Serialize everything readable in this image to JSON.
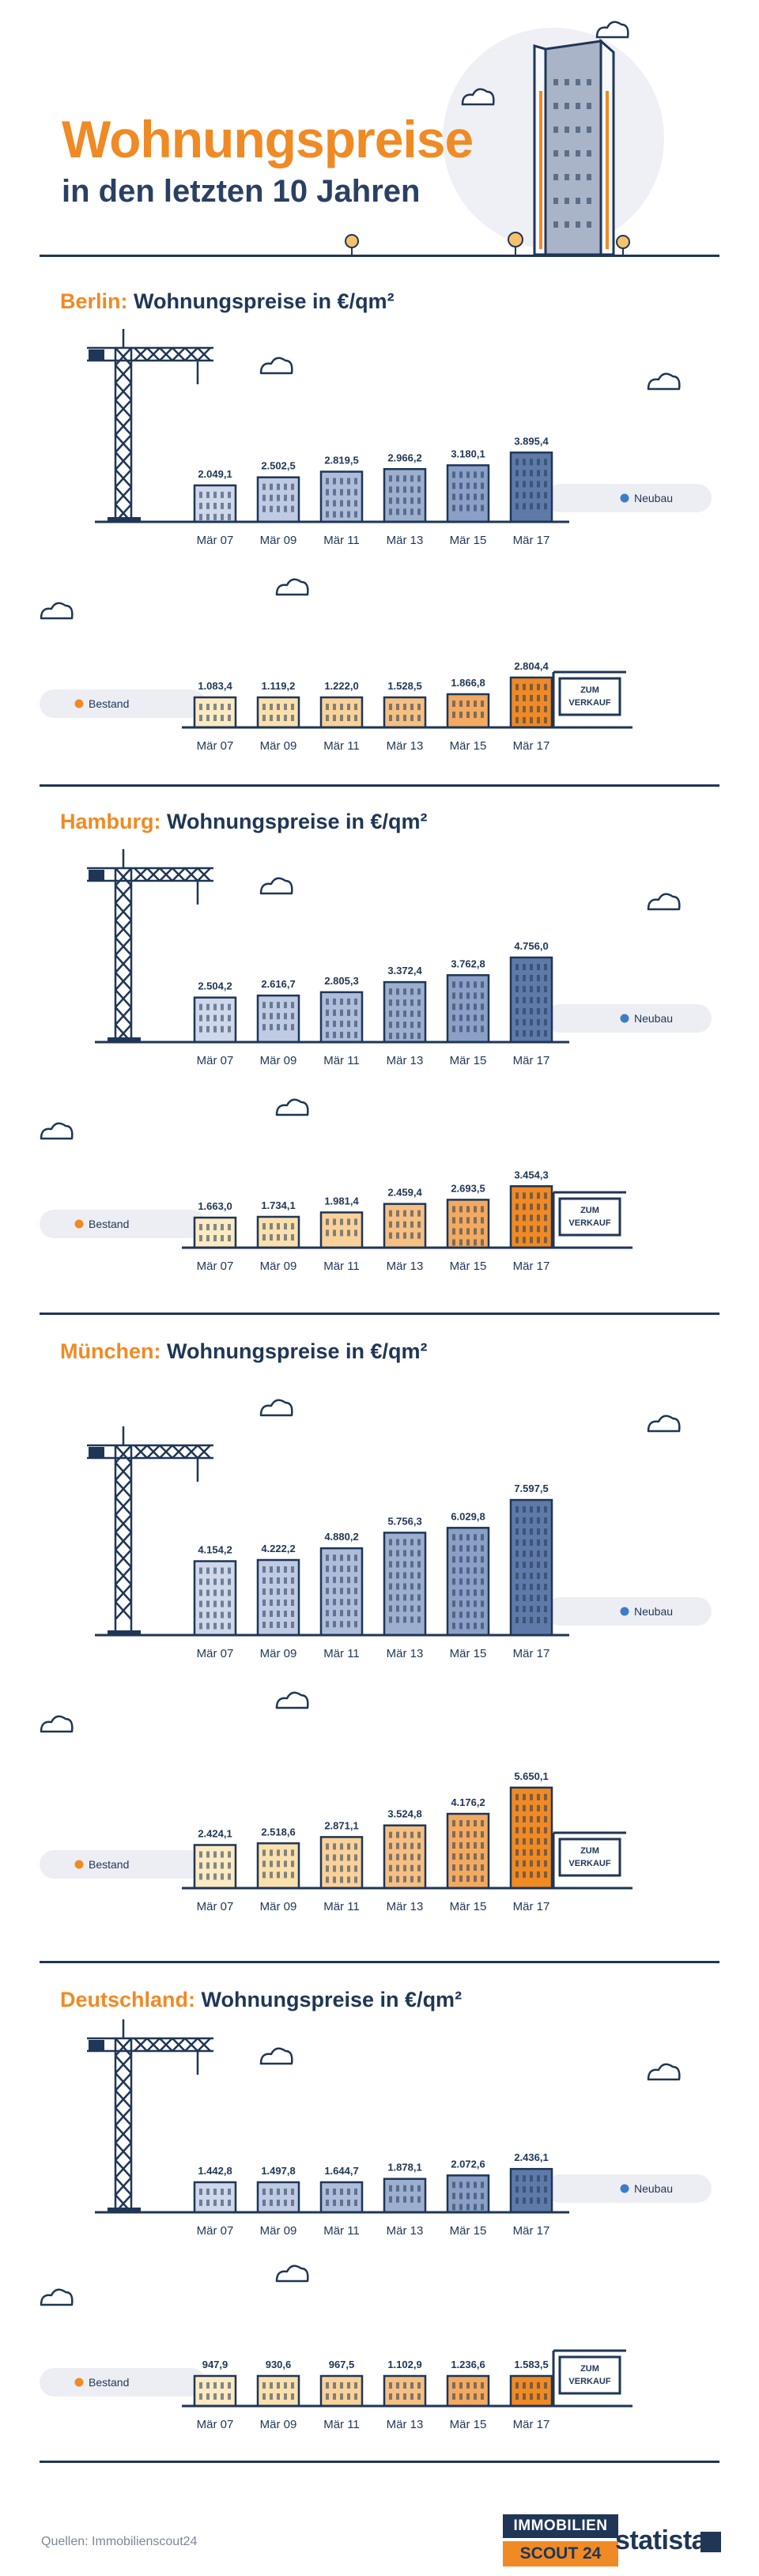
{
  "header": {
    "title": "Wohnungspreise",
    "subtitle": "in den letzten 10 Jahren"
  },
  "labels": {
    "chart_label": "Wohnungspreise in €/qm²",
    "sign": [
      "ZUM",
      "VERKAUF"
    ]
  },
  "colors": {
    "navy": "#1f3656",
    "orange": "#f08a24",
    "neubau_dot": "#3d7cc9",
    "bestand_dot": "#f08a24"
  },
  "chart_data": [
    {
      "type": "bar",
      "title": "Wohnungspreise in €/qm²",
      "city": "Berlin",
      "series_name": "Neubau",
      "categories": [
        "Mär 07",
        "Mär 09",
        "Mär 11",
        "Mär 13",
        "Mär 15",
        "Mär 17"
      ],
      "values": [
        "2.049,1",
        "2.502,5",
        "2.819,5",
        "2.966,2",
        "3.180,1",
        "3.895,4"
      ]
    },
    {
      "type": "bar",
      "city": "Berlin",
      "series_name": "Bestand",
      "categories": [
        "Mär 07",
        "Mär 09",
        "Mär 11",
        "Mär 13",
        "Mär 15",
        "Mär 17"
      ],
      "values": [
        "1.083,4",
        "1.119,2",
        "1.222,0",
        "1.528,5",
        "1.866,8",
        "2.804,4"
      ]
    },
    {
      "type": "bar",
      "title": "Wohnungspreise in €/qm²",
      "city": "Hamburg",
      "series_name": "Neubau",
      "categories": [
        "Mär 07",
        "Mär 09",
        "Mär 11",
        "Mär 13",
        "Mär 15",
        "Mär 17"
      ],
      "values": [
        "2.504,2",
        "2.616,7",
        "2.805,3",
        "3.372,4",
        "3.762,8",
        "4.756,0"
      ]
    },
    {
      "type": "bar",
      "city": "Hamburg",
      "series_name": "Bestand",
      "categories": [
        "Mär 07",
        "Mär 09",
        "Mär 11",
        "Mär 13",
        "Mär 15",
        "Mär 17"
      ],
      "values": [
        "1.663,0",
        "1.734,1",
        "1.981,4",
        "2.459,4",
        "2.693,5",
        "3.454,3"
      ]
    },
    {
      "type": "bar",
      "title": "Wohnungspreise in €/qm²",
      "city": "München",
      "series_name": "Neubau",
      "categories": [
        "Mär 07",
        "Mär 09",
        "Mär 11",
        "Mär 13",
        "Mär 15",
        "Mär 17"
      ],
      "values": [
        "4.154,2",
        "4.222,2",
        "4.880,2",
        "5.756,3",
        "6.029,8",
        "7.597,5"
      ]
    },
    {
      "type": "bar",
      "city": "München",
      "series_name": "Bestand",
      "categories": [
        "Mär 07",
        "Mär 09",
        "Mär 11",
        "Mär 13",
        "Mär 15",
        "Mär 17"
      ],
      "values": [
        "2.424,1",
        "2.518,6",
        "2.871,1",
        "3.524,8",
        "4.176,2",
        "5.650,1"
      ]
    },
    {
      "type": "bar",
      "title": "Wohnungspreise in €/qm²",
      "city": "Deutschland",
      "series_name": "Neubau",
      "categories": [
        "Mär 07",
        "Mär 09",
        "Mär 11",
        "Mär 13",
        "Mär 15",
        "Mär 17"
      ],
      "values": [
        "1.442,8",
        "1.497,8",
        "1.644,7",
        "1.878,1",
        "2.072,6",
        "2.436,1"
      ]
    },
    {
      "type": "bar",
      "city": "Deutschland",
      "series_name": "Bestand",
      "categories": [
        "Mär 07",
        "Mär 09",
        "Mär 11",
        "Mär 13",
        "Mär 15",
        "Mär 17"
      ],
      "values": [
        "947,9",
        "930,6",
        "967,5",
        "1.102,9",
        "1.236,6",
        "1.583,5"
      ]
    }
  ],
  "footer": {
    "source": "Quellen: Immobilienscout24",
    "logo_top": "IMMOBILIEN",
    "logo_bottom": "SCOUT 24",
    "statista": "statista"
  }
}
